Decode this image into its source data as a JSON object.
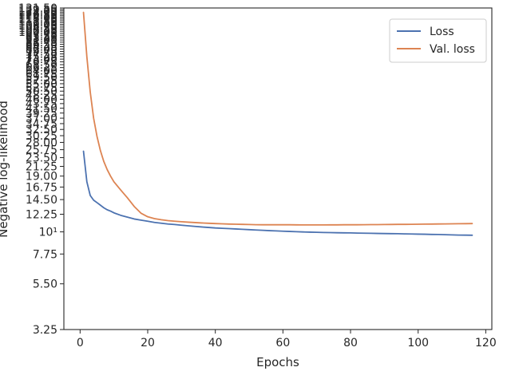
{
  "chart_data": {
    "type": "line",
    "title": "",
    "xlabel": "Epochs",
    "ylabel": "Negative log-likelihood",
    "yscale": "log",
    "xlim": [
      -4.8,
      121.8
    ],
    "ylim": [
      3.25,
      131.5
    ],
    "x_ticks": [
      0,
      20,
      40,
      60,
      80,
      100,
      120
    ],
    "x_tick_labels": [
      "0",
      "20",
      "40",
      "60",
      "80",
      "100",
      "120"
    ],
    "y_ticks": [
      3.25,
      5.5,
      7.75,
      10,
      12.25,
      14.5,
      16.75,
      19.0,
      21.25,
      23.5,
      25.75,
      28.0,
      30.25,
      32.5,
      34.75,
      37.0,
      39.25,
      41.5,
      43.75,
      46.0,
      48.25,
      50.5,
      52.75,
      55.0,
      57.25,
      59.5,
      61.75,
      64.0,
      66.25,
      68.5,
      70.75,
      73.0,
      75.25,
      77.5,
      79.75,
      82.0,
      84.25,
      86.5,
      88.75,
      91.0,
      93.25,
      95.5,
      97.75,
      100.0,
      102.25,
      104.5,
      106.75,
      109.0,
      111.25,
      113.5,
      115.75,
      118.0,
      120.25,
      122.5,
      124.75,
      127.0,
      129.25,
      131.5
    ],
    "y_tick_labels": [
      "3.25",
      "5.50",
      "7.75",
      "10¹",
      "12.25",
      "14.50",
      "16.75",
      "19.00",
      "21.25",
      "23.50",
      "25.75",
      "28.00",
      "30.25",
      "32.50",
      "34.75",
      "37.00",
      "39.25",
      "41.50",
      "43.75",
      "46.00",
      "48.25",
      "50.50",
      "52.75",
      "55.00",
      "57.25",
      "59.50",
      "61.75",
      "64.00",
      "66.25",
      "68.50",
      "70.75",
      "73.00",
      "75.25",
      "77.50",
      "79.75",
      "82.00",
      "84.25",
      "86.50",
      "88.75",
      "91.00",
      "93.25",
      "95.50",
      "97.75",
      "100.00",
      "102.25",
      "104.50",
      "106.75",
      "109.00",
      "111.25",
      "113.50",
      "115.75",
      "118.00",
      "120.25",
      "122.50",
      "124.75",
      "127.00",
      "129.25",
      "131.50"
    ],
    "grid": false,
    "legend_position": "top-right",
    "series": [
      {
        "name": "Loss",
        "color": "#4c72b0",
        "x": [
          1,
          2,
          3,
          4,
          5,
          6,
          7,
          8,
          9,
          10,
          12,
          14,
          16,
          18,
          20,
          22,
          24,
          26,
          28,
          30,
          32,
          34,
          36,
          38,
          40,
          42,
          44,
          46,
          48,
          50,
          52,
          54,
          56,
          58,
          60,
          62,
          64,
          66,
          68,
          70,
          72,
          74,
          76,
          78,
          80,
          82,
          84,
          86,
          88,
          90,
          92,
          94,
          96,
          98,
          100,
          102,
          104,
          106,
          108,
          110,
          112,
          114,
          116
        ],
        "y": [
          25.3,
          17.8,
          15.2,
          14.4,
          14.0,
          13.6,
          13.2,
          12.9,
          12.7,
          12.45,
          12.1,
          11.85,
          11.6,
          11.45,
          11.3,
          11.15,
          11.05,
          10.95,
          10.88,
          10.8,
          10.72,
          10.65,
          10.58,
          10.52,
          10.46,
          10.42,
          10.38,
          10.34,
          10.3,
          10.26,
          10.22,
          10.18,
          10.14,
          10.11,
          10.08,
          10.05,
          10.02,
          9.99,
          9.97,
          9.95,
          9.93,
          9.92,
          9.9,
          9.89,
          9.88,
          9.86,
          9.85,
          9.84,
          9.82,
          9.81,
          9.8,
          9.79,
          9.77,
          9.76,
          9.74,
          9.73,
          9.71,
          9.7,
          9.68,
          9.66,
          9.64,
          9.63,
          9.62
        ]
      },
      {
        "name": "Val. loss",
        "color": "#dd8452",
        "x": [
          1,
          2,
          3,
          4,
          5,
          6,
          7,
          8,
          9,
          10,
          12,
          14,
          16,
          18,
          20,
          22,
          24,
          26,
          28,
          30,
          32,
          34,
          36,
          38,
          40,
          42,
          44,
          46,
          48,
          50,
          52,
          54,
          56,
          58,
          60,
          62,
          64,
          66,
          68,
          70,
          72,
          74,
          76,
          78,
          80,
          82,
          84,
          86,
          88,
          90,
          92,
          94,
          96,
          98,
          100,
          102,
          104,
          106,
          108,
          110,
          112,
          114,
          116
        ],
        "y": [
          125.0,
          75.0,
          50.0,
          37.0,
          30.0,
          25.5,
          22.5,
          20.5,
          19.0,
          17.8,
          16.2,
          14.8,
          13.4,
          12.4,
          11.9,
          11.65,
          11.5,
          11.38,
          11.3,
          11.24,
          11.18,
          11.13,
          11.08,
          11.04,
          11.0,
          10.97,
          10.94,
          10.92,
          10.9,
          10.88,
          10.86,
          10.85,
          10.85,
          10.85,
          10.86,
          10.85,
          10.84,
          10.83,
          10.83,
          10.83,
          10.83,
          10.84,
          10.84,
          10.85,
          10.85,
          10.85,
          10.86,
          10.87,
          10.87,
          10.88,
          10.89,
          10.9,
          10.9,
          10.91,
          10.92,
          10.93,
          10.94,
          10.95,
          10.96,
          10.97,
          10.98,
          10.99,
          11.0
        ]
      }
    ]
  }
}
